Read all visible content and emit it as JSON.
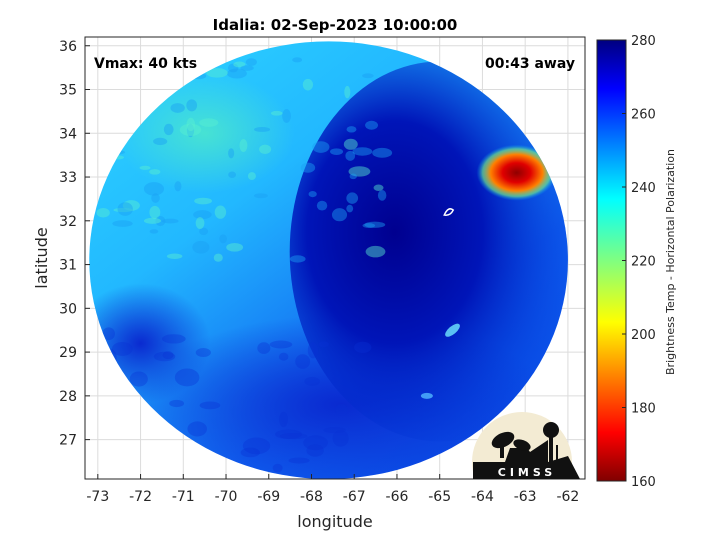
{
  "title": "Idalia: 02-Sep-2023 10:00:00",
  "annotations": {
    "vmax": "Vmax: 40 kts",
    "time_away": "00:43 away"
  },
  "axes": {
    "xlabel": "longitude",
    "ylabel": "latitude",
    "xlim": [
      -73.3,
      -61.6
    ],
    "ylim": [
      26.1,
      36.2
    ],
    "xticks": [
      -73,
      -72,
      -71,
      -70,
      -69,
      -68,
      -67,
      -66,
      -65,
      -64,
      -63,
      -62
    ],
    "yticks": [
      27,
      28,
      29,
      30,
      31,
      32,
      33,
      34,
      35,
      36
    ],
    "grid": true
  },
  "colorbar": {
    "label": "Brightness Temp - Horizontal Polarization",
    "min": 160,
    "max": 280,
    "ticks": [
      160,
      180,
      200,
      220,
      240,
      260,
      280
    ],
    "colormap": "jet"
  },
  "swath": {
    "center": [
      -67.6,
      31.1
    ],
    "radius_lon": 5.6,
    "radius_lat": 5.0
  },
  "features": {
    "warm_core": {
      "center": [
        -63.2,
        33.1
      ],
      "value": 170
    },
    "storm_center": [
      -64.8,
      32.2
    ]
  },
  "logo": {
    "text": "CIMSS",
    "name": "cimss-logo"
  },
  "colors": {
    "background": "#ffffff",
    "axis": "#262626",
    "grid": "#dcdcdc"
  }
}
